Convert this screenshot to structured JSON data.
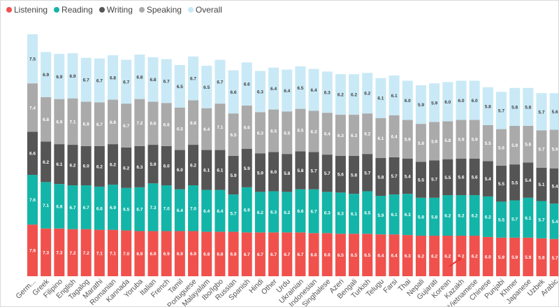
{
  "chart_data": {
    "type": "bar",
    "stacked": true,
    "title": "",
    "xlabel": "",
    "ylabel": "",
    "ylim": [
      0,
      40
    ],
    "grid": false,
    "legend_position": "top-left",
    "categories": [
      "Germ...",
      "Greek",
      "Filipino",
      "English",
      "Tagalog",
      "Marathi",
      "Romanian",
      "Kannada",
      "Yoruba",
      "Italian",
      "French",
      "Tamil",
      "Portuguese",
      "Malayalam",
      "Ibo/Igbo",
      "Russian",
      "Spanish",
      "Hindi",
      "Other",
      "Urdu",
      "Ukrainian",
      "Indonesian",
      "Singhalese",
      "Azeri",
      "Bengali",
      "Turkish",
      "Telugu",
      "Farsi",
      "Thai",
      "Nepali",
      "Gujarati",
      "Korean",
      "Kazakh",
      "Vietnamese",
      "Chinese",
      "Punjabi",
      "Khmer",
      "Japanese",
      "Uzbek",
      "Arabic"
    ],
    "series": [
      {
        "name": "Listening",
        "color": "#f0514d",
        "values": [
          7.9,
          7.3,
          7.3,
          7.2,
          7.2,
          7.1,
          7.1,
          7.0,
          6.9,
          6.9,
          6.9,
          6.9,
          6.9,
          6.8,
          6.8,
          6.8,
          6.7,
          6.7,
          6.7,
          6.7,
          6.7,
          6.6,
          6.6,
          6.5,
          6.5,
          6.5,
          6.4,
          6.4,
          6.3,
          6.2,
          6.2,
          6.2,
          6.2,
          6.2,
          6.0,
          5.9,
          5.9,
          5.9,
          5.8,
          5.7
        ]
      },
      {
        "name": "Reading",
        "color": "#13b5a8",
        "values": [
          7.6,
          7.1,
          6.8,
          6.7,
          6.7,
          6.6,
          6.9,
          6.5,
          6.7,
          7.3,
          7.0,
          6.4,
          7.0,
          6.4,
          6.4,
          5.7,
          6.9,
          6.2,
          6.3,
          6.2,
          6.6,
          6.7,
          6.3,
          6.3,
          6.1,
          6.5,
          5.9,
          6.1,
          6.3,
          5.8,
          5.8,
          6.2,
          6.2,
          6.2,
          6.2,
          5.5,
          5.7,
          6.1,
          5.7,
          5.4
        ]
      },
      {
        "name": "Writing",
        "color": "#555555",
        "values": [
          6.6,
          6.2,
          6.1,
          6.2,
          6.0,
          6.2,
          6.2,
          6.2,
          6.3,
          5.9,
          6.0,
          6.0,
          6.2,
          6.1,
          6.1,
          5.9,
          5.9,
          5.9,
          6.0,
          5.8,
          5.8,
          5.7,
          5.7,
          5.6,
          5.8,
          5.7,
          5.8,
          5.7,
          5.4,
          5.5,
          5.7,
          5.5,
          5.6,
          5.6,
          5.4,
          5.5,
          5.5,
          5.4,
          5.1,
          5.4
        ]
      },
      {
        "name": "Speaking",
        "color": "#aaaaaa",
        "values": [
          7.4,
          6.8,
          6.9,
          7.1,
          6.8,
          6.7,
          6.8,
          6.7,
          7.2,
          6.6,
          6.6,
          6.5,
          6.8,
          6.4,
          7.1,
          6.5,
          6.6,
          6.3,
          6.5,
          6.5,
          6.5,
          6.3,
          6.4,
          6.3,
          6.3,
          6.2,
          6.1,
          6.4,
          5.9,
          5.8,
          5.9,
          5.8,
          5.9,
          5.9,
          5.5,
          5.6,
          5.9,
          5.6,
          5.7,
          5.9
        ]
      },
      {
        "name": "Overall",
        "color": "#c9e9f6",
        "values": [
          7.5,
          6.9,
          6.9,
          6.9,
          6.7,
          6.7,
          6.8,
          6.7,
          6.8,
          6.8,
          6.7,
          6.5,
          6.7,
          6.5,
          6.7,
          6.6,
          6.6,
          6.3,
          6.4,
          6.4,
          6.5,
          6.4,
          6.3,
          6.2,
          6.2,
          6.2,
          6.1,
          6.1,
          6.0,
          5.9,
          5.9,
          6.0,
          6.0,
          6.0,
          5.8,
          5.7,
          5.8,
          5.8,
          5.7,
          5.6
        ]
      }
    ]
  }
}
